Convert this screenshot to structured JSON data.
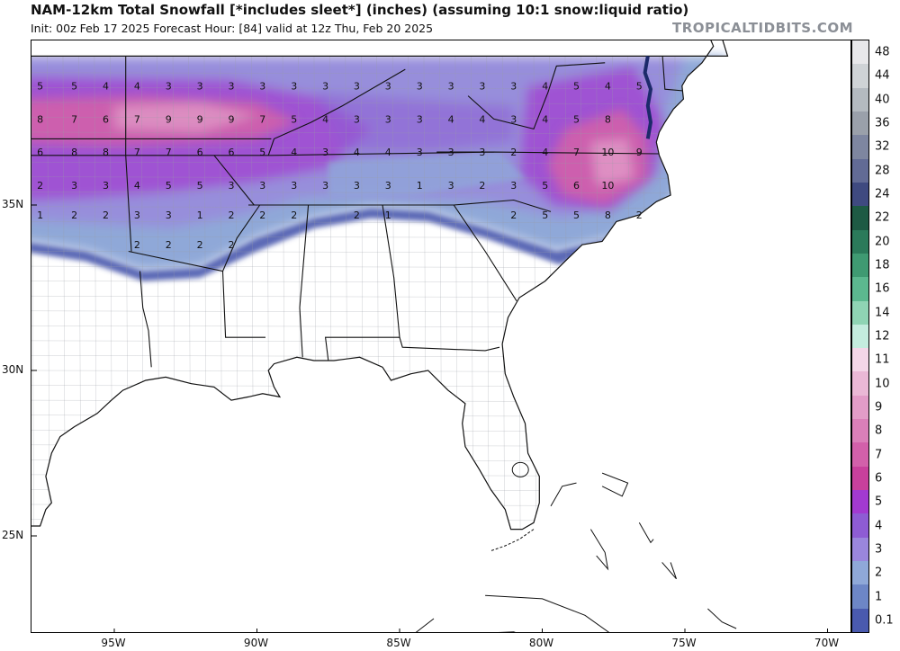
{
  "header": {
    "title": "NAM-12km Total Snowfall [*includes sleet*] (inches) (assuming 10:1 snow:liquid ratio)",
    "subtitle": "Init: 00z Feb 17 2025   Forecast Hour: [84]   valid at 12z Thu, Feb 20 2025",
    "brand": "TROPICALTIDBITS.COM"
  },
  "axes": {
    "lon_labels": [
      "95W",
      "90W",
      "85W",
      "80W",
      "75W",
      "70W"
    ],
    "lat_labels": [
      "35N",
      "30N",
      "25N"
    ]
  },
  "colorbar": {
    "labels": [
      "48",
      "44",
      "40",
      "36",
      "32",
      "28",
      "24",
      "22",
      "20",
      "18",
      "16",
      "14",
      "12",
      "11",
      "10",
      "9",
      "8",
      "7",
      "6",
      "5",
      "4",
      "3",
      "2",
      "1",
      "0.1"
    ],
    "colors": [
      "#e8e8ea",
      "#cfd3d6",
      "#b4bac0",
      "#9aa0aa",
      "#7e86a0",
      "#626b95",
      "#3f4a80",
      "#1e5a44",
      "#2b7a5a",
      "#3f9a72",
      "#5cb88f",
      "#8fd4b4",
      "#c4ecde",
      "#f4d6e8",
      "#eab8d6",
      "#e29cc8",
      "#da7fb9",
      "#d260aa",
      "#c8409c",
      "#a23ad0",
      "#8e5cd4",
      "#9a86dc",
      "#8fa8d8",
      "#6d86c6",
      "#4a5aae"
    ]
  },
  "snow_labels": [
    {
      "lon": -97.6,
      "lat": 38.6,
      "v": "5"
    },
    {
      "lon": -96.4,
      "lat": 38.6,
      "v": "5"
    },
    {
      "lon": -95.3,
      "lat": 38.6,
      "v": "4"
    },
    {
      "lon": -94.2,
      "lat": 38.6,
      "v": "4"
    },
    {
      "lon": -93.1,
      "lat": 38.6,
      "v": "3"
    },
    {
      "lon": -92.0,
      "lat": 38.6,
      "v": "3"
    },
    {
      "lon": -90.9,
      "lat": 38.6,
      "v": "3"
    },
    {
      "lon": -89.8,
      "lat": 38.6,
      "v": "3"
    },
    {
      "lon": -88.7,
      "lat": 38.6,
      "v": "3"
    },
    {
      "lon": -87.6,
      "lat": 38.6,
      "v": "3"
    },
    {
      "lon": -86.5,
      "lat": 38.6,
      "v": "3"
    },
    {
      "lon": -85.4,
      "lat": 38.6,
      "v": "3"
    },
    {
      "lon": -84.3,
      "lat": 38.6,
      "v": "3"
    },
    {
      "lon": -83.2,
      "lat": 38.6,
      "v": "3"
    },
    {
      "lon": -82.1,
      "lat": 38.6,
      "v": "3"
    },
    {
      "lon": -81.0,
      "lat": 38.6,
      "v": "3"
    },
    {
      "lon": -79.9,
      "lat": 38.6,
      "v": "4"
    },
    {
      "lon": -78.8,
      "lat": 38.6,
      "v": "5"
    },
    {
      "lon": -77.7,
      "lat": 38.6,
      "v": "4"
    },
    {
      "lon": -76.6,
      "lat": 38.6,
      "v": "5"
    },
    {
      "lon": -97.6,
      "lat": 37.6,
      "v": "8"
    },
    {
      "lon": -96.4,
      "lat": 37.6,
      "v": "7"
    },
    {
      "lon": -95.3,
      "lat": 37.6,
      "v": "6"
    },
    {
      "lon": -94.2,
      "lat": 37.6,
      "v": "7"
    },
    {
      "lon": -93.1,
      "lat": 37.6,
      "v": "9"
    },
    {
      "lon": -92.0,
      "lat": 37.6,
      "v": "9"
    },
    {
      "lon": -90.9,
      "lat": 37.6,
      "v": "9"
    },
    {
      "lon": -89.8,
      "lat": 37.6,
      "v": "7"
    },
    {
      "lon": -88.7,
      "lat": 37.6,
      "v": "5"
    },
    {
      "lon": -87.6,
      "lat": 37.6,
      "v": "4"
    },
    {
      "lon": -86.5,
      "lat": 37.6,
      "v": "3"
    },
    {
      "lon": -85.4,
      "lat": 37.6,
      "v": "3"
    },
    {
      "lon": -84.3,
      "lat": 37.6,
      "v": "3"
    },
    {
      "lon": -83.2,
      "lat": 37.6,
      "v": "4"
    },
    {
      "lon": -82.1,
      "lat": 37.6,
      "v": "4"
    },
    {
      "lon": -81.0,
      "lat": 37.6,
      "v": "3"
    },
    {
      "lon": -79.9,
      "lat": 37.6,
      "v": "4"
    },
    {
      "lon": -78.8,
      "lat": 37.6,
      "v": "5"
    },
    {
      "lon": -77.7,
      "lat": 37.6,
      "v": "8"
    },
    {
      "lon": -97.6,
      "lat": 36.6,
      "v": "6"
    },
    {
      "lon": -96.4,
      "lat": 36.6,
      "v": "8"
    },
    {
      "lon": -95.3,
      "lat": 36.6,
      "v": "8"
    },
    {
      "lon": -94.2,
      "lat": 36.6,
      "v": "7"
    },
    {
      "lon": -93.1,
      "lat": 36.6,
      "v": "7"
    },
    {
      "lon": -92.0,
      "lat": 36.6,
      "v": "6"
    },
    {
      "lon": -90.9,
      "lat": 36.6,
      "v": "6"
    },
    {
      "lon": -89.8,
      "lat": 36.6,
      "v": "5"
    },
    {
      "lon": -88.7,
      "lat": 36.6,
      "v": "4"
    },
    {
      "lon": -87.6,
      "lat": 36.6,
      "v": "3"
    },
    {
      "lon": -86.5,
      "lat": 36.6,
      "v": "4"
    },
    {
      "lon": -85.4,
      "lat": 36.6,
      "v": "4"
    },
    {
      "lon": -84.3,
      "lat": 36.6,
      "v": "3"
    },
    {
      "lon": -83.2,
      "lat": 36.6,
      "v": "3"
    },
    {
      "lon": -82.1,
      "lat": 36.6,
      "v": "3"
    },
    {
      "lon": -81.0,
      "lat": 36.6,
      "v": "2"
    },
    {
      "lon": -79.9,
      "lat": 36.6,
      "v": "4"
    },
    {
      "lon": -78.8,
      "lat": 36.6,
      "v": "7"
    },
    {
      "lon": -77.7,
      "lat": 36.6,
      "v": "10"
    },
    {
      "lon": -76.6,
      "lat": 36.6,
      "v": "9"
    },
    {
      "lon": -97.6,
      "lat": 35.6,
      "v": "2"
    },
    {
      "lon": -96.4,
      "lat": 35.6,
      "v": "3"
    },
    {
      "lon": -95.3,
      "lat": 35.6,
      "v": "3"
    },
    {
      "lon": -94.2,
      "lat": 35.6,
      "v": "4"
    },
    {
      "lon": -93.1,
      "lat": 35.6,
      "v": "5"
    },
    {
      "lon": -92.0,
      "lat": 35.6,
      "v": "5"
    },
    {
      "lon": -90.9,
      "lat": 35.6,
      "v": "3"
    },
    {
      "lon": -89.8,
      "lat": 35.6,
      "v": "3"
    },
    {
      "lon": -88.7,
      "lat": 35.6,
      "v": "3"
    },
    {
      "lon": -87.6,
      "lat": 35.6,
      "v": "3"
    },
    {
      "lon": -86.5,
      "lat": 35.6,
      "v": "3"
    },
    {
      "lon": -85.4,
      "lat": 35.6,
      "v": "3"
    },
    {
      "lon": -84.3,
      "lat": 35.6,
      "v": "1"
    },
    {
      "lon": -83.2,
      "lat": 35.6,
      "v": "3"
    },
    {
      "lon": -82.1,
      "lat": 35.6,
      "v": "2"
    },
    {
      "lon": -81.0,
      "lat": 35.6,
      "v": "3"
    },
    {
      "lon": -79.9,
      "lat": 35.6,
      "v": "5"
    },
    {
      "lon": -78.8,
      "lat": 35.6,
      "v": "6"
    },
    {
      "lon": -77.7,
      "lat": 35.6,
      "v": "10"
    },
    {
      "lon": -97.6,
      "lat": 34.7,
      "v": "1"
    },
    {
      "lon": -96.4,
      "lat": 34.7,
      "v": "2"
    },
    {
      "lon": -95.3,
      "lat": 34.7,
      "v": "2"
    },
    {
      "lon": -94.2,
      "lat": 34.7,
      "v": "3"
    },
    {
      "lon": -93.1,
      "lat": 34.7,
      "v": "3"
    },
    {
      "lon": -92.0,
      "lat": 34.7,
      "v": "1"
    },
    {
      "lon": -90.9,
      "lat": 34.7,
      "v": "2"
    },
    {
      "lon": -89.8,
      "lat": 34.7,
      "v": "2"
    },
    {
      "lon": -88.7,
      "lat": 34.7,
      "v": "2"
    },
    {
      "lon": -86.5,
      "lat": 34.7,
      "v": "2"
    },
    {
      "lon": -85.4,
      "lat": 34.7,
      "v": "1"
    },
    {
      "lon": -81.0,
      "lat": 34.7,
      "v": "2"
    },
    {
      "lon": -79.9,
      "lat": 34.7,
      "v": "5"
    },
    {
      "lon": -78.8,
      "lat": 34.7,
      "v": "5"
    },
    {
      "lon": -77.7,
      "lat": 34.7,
      "v": "8"
    },
    {
      "lon": -76.6,
      "lat": 34.7,
      "v": "2"
    },
    {
      "lon": -94.2,
      "lat": 33.8,
      "v": "2"
    },
    {
      "lon": -93.1,
      "lat": 33.8,
      "v": "2"
    },
    {
      "lon": -92.0,
      "lat": 33.8,
      "v": "2"
    },
    {
      "lon": -90.9,
      "lat": 33.8,
      "v": "2"
    }
  ]
}
